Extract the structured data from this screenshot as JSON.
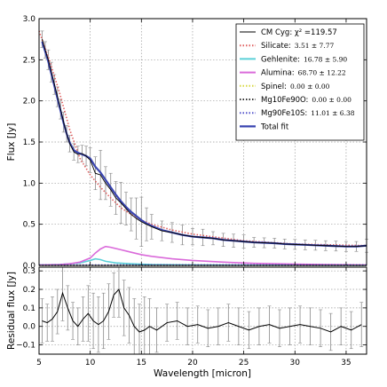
{
  "chart_data": [
    {
      "type": "line",
      "xlabel": "",
      "ylabel": "Flux [Jy]",
      "xlim": [
        5,
        37
      ],
      "ylim": [
        0,
        3.0
      ],
      "x_ticks": [
        "5",
        "10",
        "15",
        "20",
        "25",
        "30",
        "35"
      ],
      "y_ticks": [
        "0.0",
        "0.5",
        "1.0",
        "1.5",
        "2.0",
        "2.5",
        "3.0"
      ],
      "grid": true,
      "legend_position": "top-right",
      "observed": {
        "name": "CM Cyg: χ² =119.57",
        "color": "#000000",
        "x": [
          5.3,
          5.6,
          5.9,
          6.2,
          6.5,
          6.8,
          7.1,
          7.4,
          7.7,
          8.0,
          8.4,
          8.8,
          9.2,
          9.6,
          10.0,
          10.5,
          11.0,
          11.5,
          12.0,
          12.5,
          13.0,
          13.5,
          14.0,
          14.5,
          15.0,
          15.5,
          16.0,
          17.0,
          18.0,
          19.0,
          20.0,
          21.0,
          22.0,
          23.0,
          24.0,
          25.0,
          26.0,
          27.0,
          28.0,
          29.0,
          30.0,
          31.0,
          32.0,
          33.0,
          34.0,
          35.0,
          36.0,
          37.0
        ],
        "y": [
          2.75,
          2.62,
          2.5,
          2.35,
          2.2,
          2.05,
          1.9,
          1.74,
          1.6,
          1.48,
          1.38,
          1.35,
          1.36,
          1.33,
          1.28,
          1.12,
          1.1,
          1.0,
          0.92,
          0.82,
          0.76,
          0.69,
          0.62,
          0.57,
          0.53,
          0.5,
          0.47,
          0.42,
          0.4,
          0.37,
          0.35,
          0.34,
          0.33,
          0.31,
          0.3,
          0.29,
          0.28,
          0.275,
          0.27,
          0.26,
          0.255,
          0.25,
          0.245,
          0.24,
          0.235,
          0.23,
          0.23,
          0.24
        ],
        "err": [
          0.1,
          0.1,
          0.12,
          0.12,
          0.12,
          0.12,
          0.12,
          0.12,
          0.1,
          0.1,
          0.1,
          0.1,
          0.1,
          0.12,
          0.15,
          0.2,
          0.3,
          0.2,
          0.2,
          0.2,
          0.25,
          0.2,
          0.2,
          0.25,
          0.3,
          0.2,
          0.15,
          0.12,
          0.12,
          0.12,
          0.1,
          0.1,
          0.08,
          0.08,
          0.08,
          0.08,
          0.06,
          0.06,
          0.06,
          0.06,
          0.06,
          0.06,
          0.06,
          0.06,
          0.06,
          0.06,
          0.06,
          0.08
        ]
      },
      "series": [
        {
          "name": "Silicate:",
          "value": "3.51 ± 7.77",
          "color": "#e06060",
          "style": "dotted",
          "x": [
            5,
            6,
            7,
            8,
            9,
            10,
            11,
            12,
            13,
            14,
            15,
            16,
            18,
            20,
            25,
            30,
            37
          ],
          "y": [
            2.85,
            2.5,
            2.1,
            1.65,
            1.3,
            1.1,
            0.95,
            0.82,
            0.7,
            0.62,
            0.55,
            0.5,
            0.43,
            0.38,
            0.3,
            0.26,
            0.24
          ]
        },
        {
          "name": "Gehlenite:",
          "value": "16.78 ± 5.90",
          "color": "#5bd0d8",
          "style": "solid",
          "x": [
            5,
            7,
            9,
            10,
            10.5,
            11,
            11.5,
            12.5,
            14,
            16,
            20,
            37
          ],
          "y": [
            0.005,
            0.01,
            0.03,
            0.06,
            0.08,
            0.07,
            0.05,
            0.03,
            0.02,
            0.01,
            0.005,
            0.0
          ]
        },
        {
          "name": "Alumina:",
          "value": "68.70 ± 12.22",
          "color": "#da6ada",
          "style": "solid",
          "x": [
            5,
            7,
            8,
            9,
            10,
            10.5,
            11,
            11.5,
            12,
            13,
            14,
            15,
            16,
            18,
            20,
            23,
            26,
            30,
            33,
            37
          ],
          "y": [
            0.005,
            0.01,
            0.02,
            0.04,
            0.09,
            0.15,
            0.2,
            0.23,
            0.22,
            0.19,
            0.16,
            0.13,
            0.11,
            0.08,
            0.06,
            0.04,
            0.025,
            0.015,
            0.01,
            0.005
          ]
        },
        {
          "name": "Spinel:",
          "value": "0.00 ± 0.00",
          "color": "#d8d840",
          "style": "dotted",
          "x": [
            5,
            37
          ],
          "y": [
            0.0,
            0.0
          ]
        },
        {
          "name": "Mg10Fe90O:",
          "value": "0.00 ± 0.00",
          "color": "#333333",
          "style": "dotted",
          "x": [
            5,
            37
          ],
          "y": [
            0.0,
            0.0
          ]
        },
        {
          "name": "Mg90Fe10S:",
          "value": "11.01 ± 6.38",
          "color": "#5555cc",
          "style": "dotted",
          "x": [
            5,
            10,
            15,
            20,
            25,
            30,
            37
          ],
          "y": [
            0.005,
            0.005,
            0.006,
            0.006,
            0.006,
            0.006,
            0.006
          ]
        },
        {
          "name": "Total fit",
          "color": "#3a45b0",
          "style": "solid",
          "x": [
            5.3,
            5.6,
            5.9,
            6.2,
            6.5,
            6.8,
            7.1,
            7.4,
            7.7,
            8.0,
            8.4,
            8.8,
            9.2,
            9.6,
            10.0,
            10.5,
            11.0,
            11.5,
            12.0,
            12.5,
            13.0,
            13.5,
            14.0,
            14.5,
            15.0,
            15.5,
            16.0,
            17.0,
            18.0,
            19.0,
            20.0,
            21.0,
            22.0,
            23.0,
            24.0,
            25.0,
            26.0,
            27.0,
            28.0,
            29.0,
            30.0,
            31.0,
            32.0,
            33.0,
            34.0,
            35.0,
            36.0,
            37.0
          ],
          "y": [
            2.72,
            2.6,
            2.48,
            2.33,
            2.18,
            2.03,
            1.88,
            1.73,
            1.6,
            1.49,
            1.4,
            1.37,
            1.35,
            1.33,
            1.3,
            1.2,
            1.13,
            1.04,
            0.95,
            0.86,
            0.78,
            0.71,
            0.65,
            0.6,
            0.55,
            0.51,
            0.48,
            0.43,
            0.4,
            0.37,
            0.35,
            0.34,
            0.33,
            0.31,
            0.3,
            0.29,
            0.28,
            0.275,
            0.27,
            0.26,
            0.255,
            0.25,
            0.245,
            0.24,
            0.235,
            0.23,
            0.23,
            0.24
          ]
        }
      ]
    },
    {
      "type": "line",
      "xlabel": "Wavelength [micron]",
      "ylabel": "Residual flux [Jy]",
      "xlim": [
        5,
        37
      ],
      "ylim": [
        -0.15,
        0.32
      ],
      "x_ticks": [
        "5",
        "10",
        "15",
        "20",
        "25",
        "30",
        "35"
      ],
      "y_ticks": [
        "−0.1",
        "0.0",
        "0.1",
        "0.2",
        "0.3"
      ],
      "grid": true,
      "residual": {
        "color": "#000000",
        "x": [
          5.3,
          5.8,
          6.3,
          6.8,
          7.3,
          7.8,
          8.3,
          8.8,
          9.3,
          9.8,
          10.3,
          10.8,
          11.3,
          11.8,
          12.3,
          12.8,
          13.3,
          13.8,
          14.3,
          14.8,
          15.3,
          15.8,
          16.5,
          17.5,
          18.5,
          19.5,
          20.5,
          21.5,
          22.5,
          23.5,
          24.5,
          25.5,
          26.5,
          27.5,
          28.5,
          29.5,
          30.5,
          31.5,
          32.5,
          33.5,
          34.5,
          35.5,
          36.5
        ],
        "y": [
          0.03,
          0.02,
          0.04,
          0.08,
          0.18,
          0.1,
          0.03,
          0.0,
          0.04,
          0.07,
          0.03,
          0.01,
          0.03,
          0.08,
          0.17,
          0.2,
          0.1,
          0.06,
          0.0,
          -0.03,
          -0.02,
          0.0,
          -0.02,
          0.02,
          0.03,
          0.0,
          0.01,
          -0.01,
          0.0,
          0.02,
          0.0,
          -0.02,
          0.0,
          0.01,
          -0.01,
          0.0,
          0.01,
          0.0,
          -0.01,
          -0.03,
          0.0,
          -0.02,
          0.01
        ],
        "err": [
          0.12,
          0.1,
          0.12,
          0.12,
          0.15,
          0.12,
          0.1,
          0.1,
          0.12,
          0.15,
          0.15,
          0.15,
          0.15,
          0.15,
          0.12,
          0.15,
          0.15,
          0.15,
          0.15,
          0.15,
          0.18,
          0.15,
          0.12,
          0.1,
          0.1,
          0.1,
          0.1,
          0.1,
          0.1,
          0.1,
          0.1,
          0.1,
          0.1,
          0.1,
          0.1,
          0.1,
          0.1,
          0.1,
          0.1,
          0.1,
          0.1,
          0.1,
          0.12
        ]
      }
    }
  ]
}
